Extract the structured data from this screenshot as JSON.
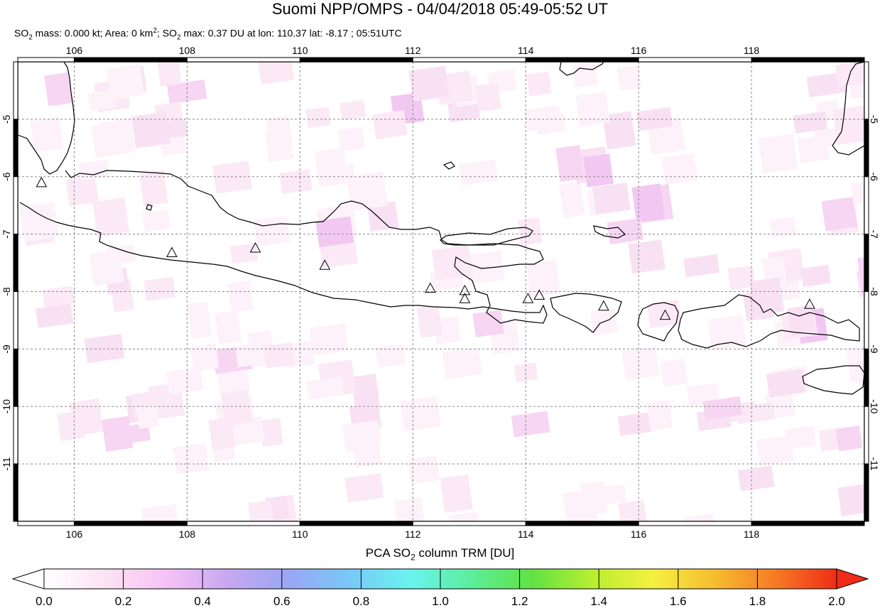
{
  "title": "Suomi NPP/OMPS - 04/04/2018 05:49-05:52 UT",
  "subtitle": {
    "mass_label": "SO",
    "mass_sub": "2",
    "mass_text": " mass: 0.000 kt; Area: 0 km",
    "area_sup": "2",
    "max_label": "; SO",
    "max_sub": "2",
    "max_text": " max: 0.37 DU at lon: 110.37 lat: -8.17 ; 05:51UTC"
  },
  "map": {
    "lon_range": [
      105,
      120
    ],
    "lat_range": [
      -12,
      -4
    ],
    "lon_ticks": [
      "106",
      "108",
      "110",
      "112",
      "114",
      "116",
      "118"
    ],
    "lat_ticks": [
      "-5",
      "-6",
      "-7",
      "-8",
      "-9",
      "-10",
      "-11"
    ],
    "volcanoes": [
      {
        "lon": 105.42,
        "lat": -6.1
      },
      {
        "lon": 107.73,
        "lat": -7.32
      },
      {
        "lon": 109.21,
        "lat": -7.24
      },
      {
        "lon": 110.44,
        "lat": -7.54
      },
      {
        "lon": 112.31,
        "lat": -7.94
      },
      {
        "lon": 112.92,
        "lat": -7.98
      },
      {
        "lon": 112.92,
        "lat": -8.12
      },
      {
        "lon": 114.04,
        "lat": -8.12
      },
      {
        "lon": 114.24,
        "lat": -8.06
      },
      {
        "lon": 115.38,
        "lat": -8.25
      },
      {
        "lon": 116.47,
        "lat": -8.41
      },
      {
        "lon": 119.03,
        "lat": -8.22
      }
    ],
    "so2_max_DU": 0.37,
    "so2_max_lon": 110.37,
    "so2_max_lat": -8.17
  },
  "colorbar": {
    "title_pre": "PCA SO",
    "title_sub": "2",
    "title_post": " column TRM [DU]",
    "min": 0.0,
    "max": 2.0,
    "labels": [
      "0.0",
      "0.2",
      "0.4",
      "0.6",
      "0.8",
      "1.0",
      "1.2",
      "1.4",
      "1.6",
      "1.8",
      "2.0"
    ],
    "colors": [
      "#ffffff",
      "#fce3f3",
      "#f6c2f6",
      "#c8a8f0",
      "#9aa6f4",
      "#78c8f6",
      "#6af4f0",
      "#5cee9c",
      "#60e244",
      "#b8ee30",
      "#f6f040",
      "#f6bc30",
      "#f67a24",
      "#f02c18"
    ]
  }
}
